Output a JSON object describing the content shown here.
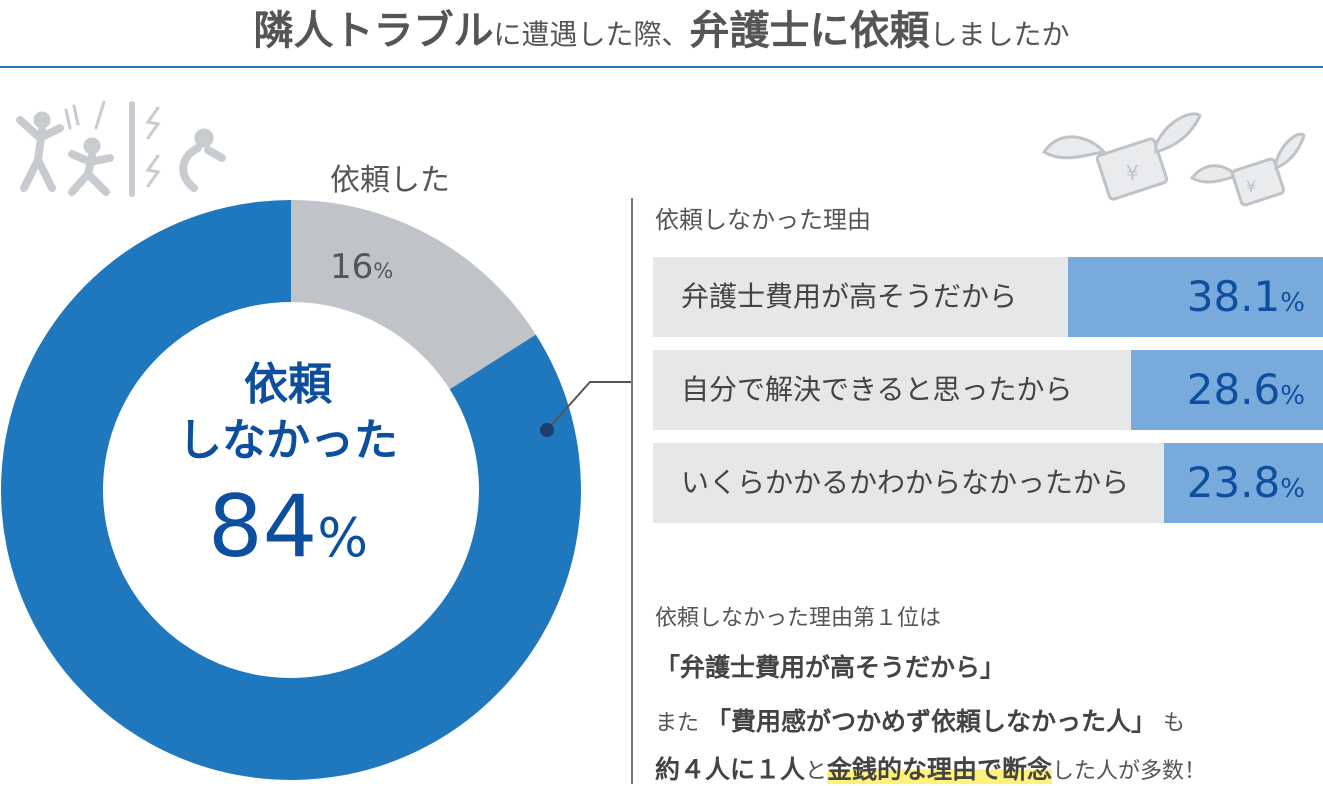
{
  "title": {
    "part1": "隣人トラブル",
    "part2": "に遭遇した際、",
    "part3": "弁護士に依頼",
    "part4": "しましたか"
  },
  "chart_data": {
    "type": "pie",
    "slices": [
      {
        "name": "依頼した",
        "value": 16,
        "color": "#c0c4c8"
      },
      {
        "name": "依頼しなかった",
        "value": 84,
        "color": "#1f77be"
      }
    ]
  },
  "donut": {
    "yes_label": "依頼した",
    "yes_value": "16",
    "no_label_line1": "依頼",
    "no_label_line2": "しなかった",
    "no_value": "84",
    "unit": "%"
  },
  "reasons": {
    "title": "依頼しなかった理由",
    "items": [
      {
        "label": "弁護士費用が高そうだから",
        "value": "38.1",
        "pct": 38.1
      },
      {
        "label": "自分で解決できると思ったから",
        "value": "28.6",
        "pct": 28.6
      },
      {
        "label": "いくらかかるかわからなかったから",
        "value": "23.8",
        "pct": 23.8
      }
    ],
    "unit": "%"
  },
  "note": {
    "line1": "依頼しなかった理由第１位は",
    "line2": "「弁護士費用が高そうだから」",
    "line3a": "また",
    "line3b": "「費用感がつかめず依頼しなかった人」",
    "line3c": "も",
    "line4a": "約４人に１人",
    "line4b": "と",
    "line4c": "金銭的な理由で断念",
    "line4d": "した人が多数！"
  },
  "colors": {
    "accent": "#1f77be",
    "grey": "#c0c4c8",
    "bar_fill": "#78abdc",
    "bar_bg": "#e6e7e8",
    "value_text": "#0d4f9e",
    "highlight": "#fff27a"
  },
  "icons": [
    "neighbor-trouble-icon",
    "flying-money-icon"
  ]
}
